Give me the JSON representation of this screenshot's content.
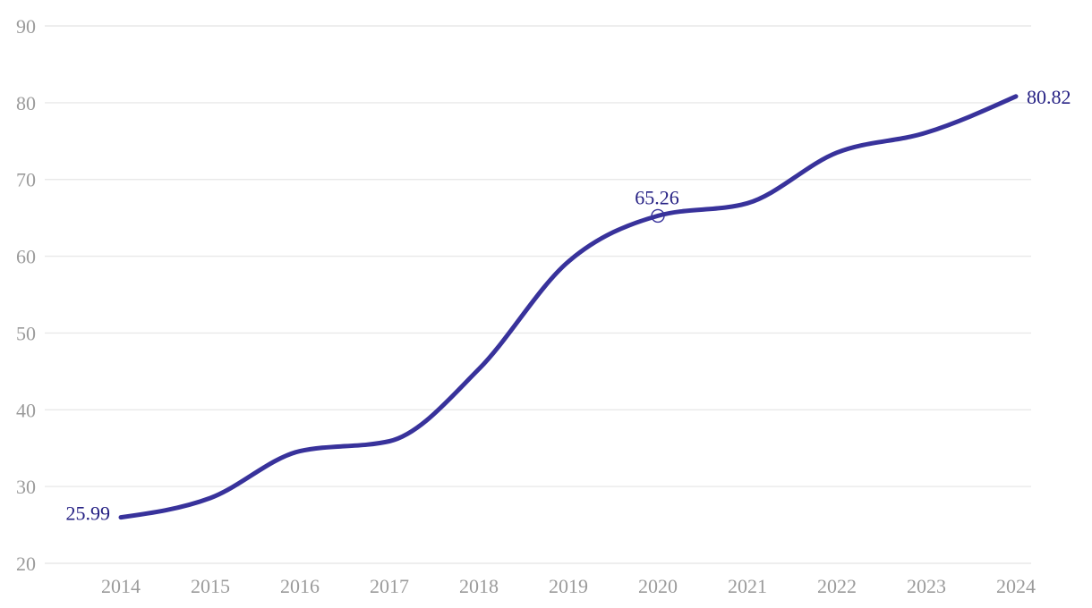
{
  "chart_data": {
    "type": "line",
    "title": "",
    "xlabel": "",
    "ylabel": "",
    "x": [
      2014,
      2015,
      2016,
      2017,
      2018,
      2019,
      2020,
      2021,
      2022,
      2023,
      2024
    ],
    "values": [
      25.99,
      28.5,
      34.6,
      35.9,
      45.3,
      59.3,
      65.26,
      66.9,
      73.5,
      76.1,
      80.82
    ],
    "ylim": [
      20,
      90
    ],
    "yticks": [
      90,
      80,
      70,
      60,
      50,
      40,
      30,
      20
    ],
    "grid": true,
    "legend_position": "none",
    "curve": "monotone",
    "annotations": [
      {
        "x": 2014,
        "value": 25.99,
        "label": "25.99",
        "position": "left",
        "marker": "none"
      },
      {
        "x": 2020,
        "value": 65.26,
        "label": "65.26",
        "position": "above",
        "marker": "open-circle"
      },
      {
        "x": 2024,
        "value": 80.82,
        "label": "80.82",
        "position": "right",
        "marker": "none"
      }
    ],
    "colors": {
      "line": "#38329b",
      "data_label": "#262184",
      "axis_text": "#9b9b9b",
      "grid": "#e9e9e9",
      "marker_fill": "#ffffff",
      "background": "#ffffff"
    }
  }
}
